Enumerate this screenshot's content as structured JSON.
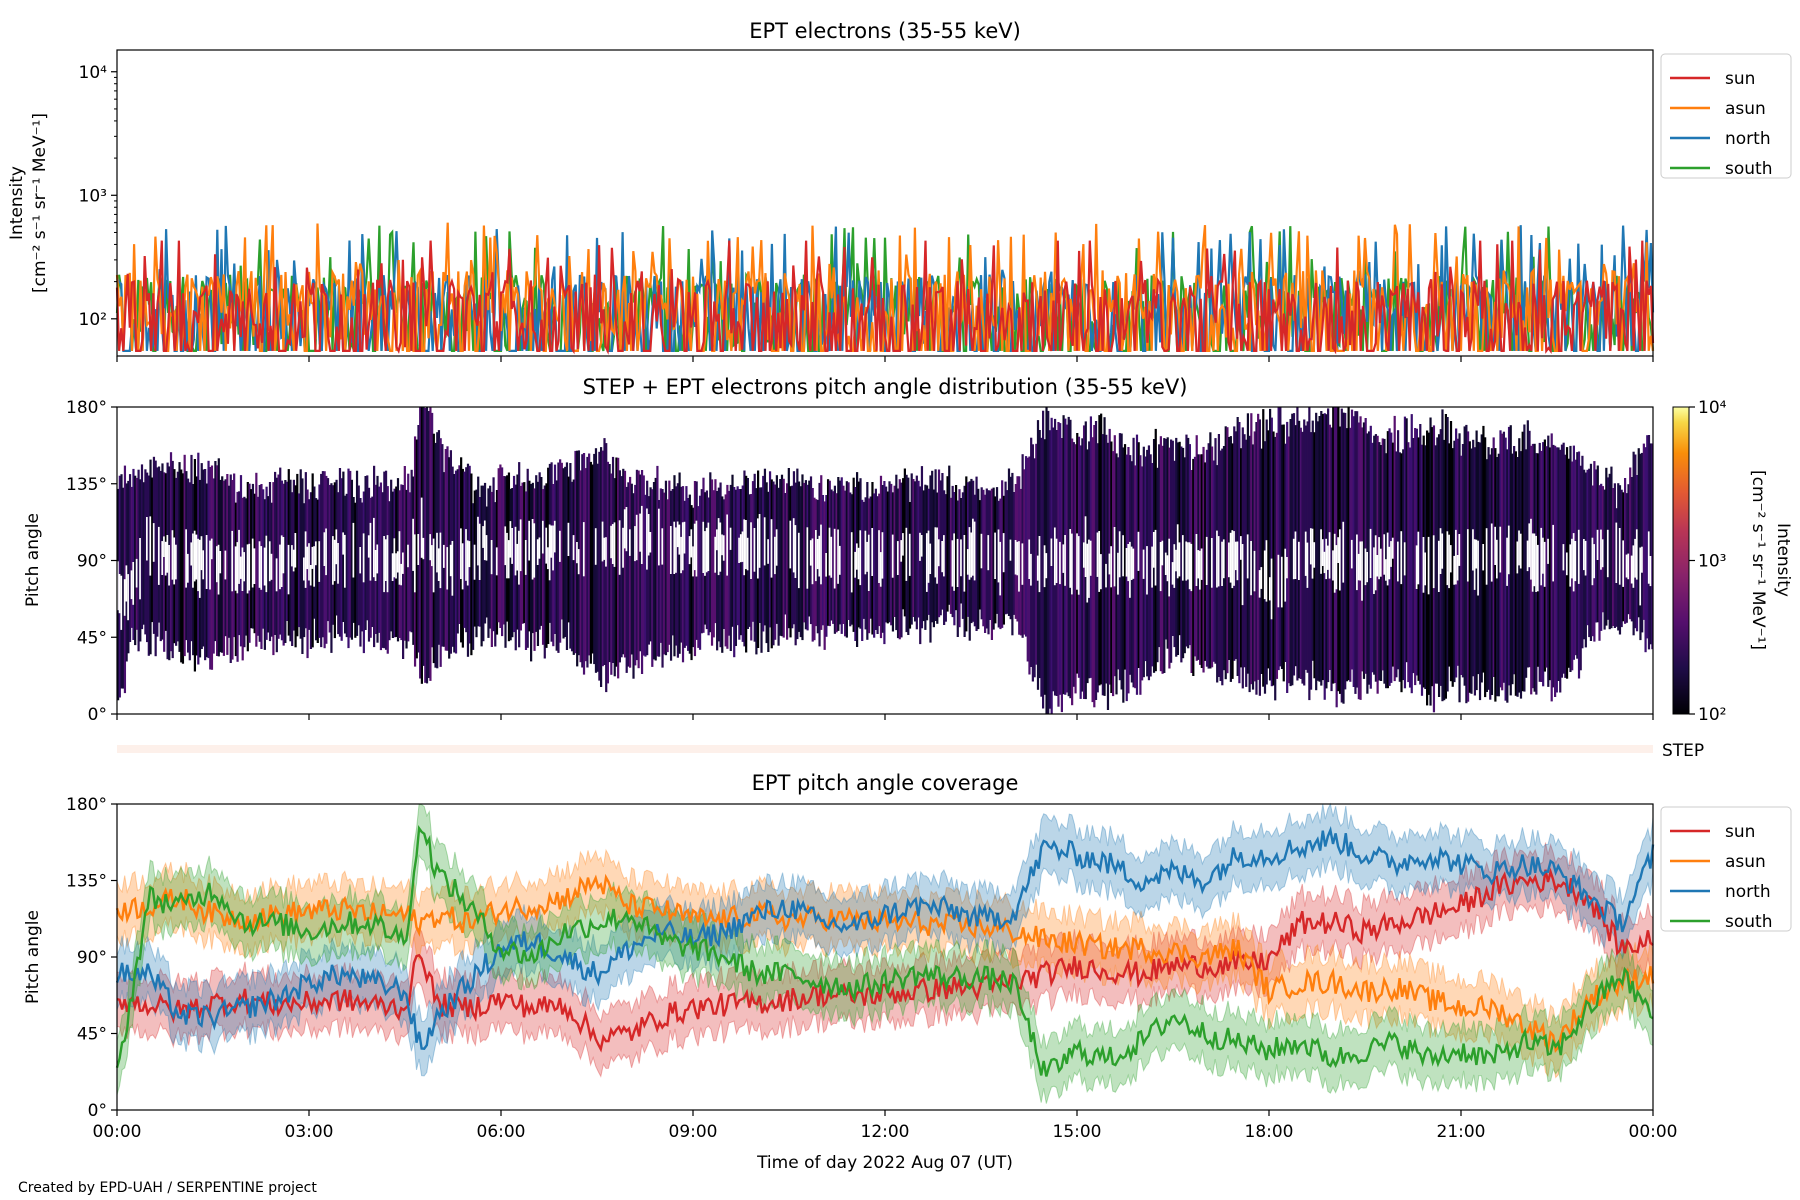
{
  "footer_credit": "Created by EPD-UAH / SERPENTINE project",
  "colors": {
    "sun": "#d62728",
    "asun": "#ff7f0e",
    "north": "#1f77b4",
    "south": "#2ca02c"
  },
  "chart_data": [
    {
      "type": "line",
      "title": "EPT electrons (35-55 keV)",
      "ylabel_line1": "Intensity",
      "ylabel_line2": "[cm⁻² s⁻¹ sr⁻¹ MeV⁻¹]",
      "yscale": "log",
      "ylim": [
        50,
        15000
      ],
      "yticks": [
        {
          "v": 100,
          "label": "10²"
        },
        {
          "v": 1000,
          "label": "10³"
        },
        {
          "v": 10000,
          "label": "10⁴"
        }
      ],
      "xlim_hours": [
        0,
        24
      ],
      "legend": "outside-right",
      "series": [
        {
          "name": "south",
          "color": "#2ca02c",
          "approx_median": 120,
          "approx_peak": 600
        },
        {
          "name": "north",
          "color": "#1f77b4",
          "approx_median": 120,
          "approx_peak": 580
        },
        {
          "name": "asun",
          "color": "#ff7f0e",
          "approx_median": 130,
          "approx_peak": 600
        },
        {
          "name": "sun",
          "color": "#d62728",
          "approx_median": 110,
          "approx_peak": 430
        }
      ]
    },
    {
      "type": "heatmap",
      "title": "STEP + EPT electrons pitch angle distribution (35-55 keV)",
      "ylabel": "Pitch angle",
      "ylim": [
        0,
        180
      ],
      "yticks": [
        "0°",
        "45°",
        "90°",
        "135°",
        "180°"
      ],
      "colorbar": {
        "label_line1": "Intensity",
        "label_line2": "[cm⁻² s⁻¹ sr⁻¹ MeV⁻¹]",
        "scale": "log",
        "range": [
          100,
          10000
        ],
        "ticks": [
          "10²",
          "10³",
          "10⁴"
        ],
        "colormap": "inferno"
      },
      "step_row_label": "STEP"
    },
    {
      "type": "line",
      "title": "EPT pitch angle coverage",
      "ylabel": "Pitch angle",
      "xlabel": "Time of day 2022 Aug 07 (UT)",
      "ylim": [
        0,
        180
      ],
      "yticks": [
        "0°",
        "45°",
        "90°",
        "135°",
        "180°"
      ],
      "xticks": [
        "00:00",
        "03:00",
        "06:00",
        "09:00",
        "12:00",
        "15:00",
        "18:00",
        "21:00",
        "00:00"
      ],
      "legend": "outside-right",
      "x_hours": [
        0,
        0.5,
        1,
        1.5,
        2,
        2.5,
        3,
        3.5,
        4,
        4.5,
        4.75,
        5,
        5.5,
        6,
        6.5,
        7,
        7.5,
        8,
        8.5,
        9,
        9.5,
        10,
        10.5,
        11,
        11.5,
        12,
        12.5,
        13,
        13.5,
        14,
        14.5,
        15,
        15.5,
        16,
        16.5,
        17,
        17.5,
        18,
        18.5,
        19,
        19.5,
        20,
        20.5,
        21,
        21.5,
        22,
        22.5,
        23,
        23.5,
        24
      ],
      "series": [
        {
          "name": "sun",
          "color": "#d62728",
          "values": [
            65,
            62,
            58,
            63,
            65,
            62,
            63,
            65,
            62,
            60,
            95,
            62,
            60,
            65,
            60,
            62,
            42,
            45,
            55,
            60,
            62,
            63,
            65,
            68,
            67,
            68,
            70,
            72,
            72,
            75,
            80,
            85,
            82,
            80,
            85,
            85,
            85,
            88,
            110,
            110,
            105,
            110,
            115,
            120,
            130,
            135,
            135,
            125,
            95,
            100
          ]
        },
        {
          "name": "asun",
          "color": "#ff7f0e",
          "values": [
            118,
            120,
            125,
            115,
            112,
            115,
            117,
            118,
            115,
            115,
            110,
            115,
            110,
            118,
            120,
            125,
            135,
            120,
            118,
            112,
            112,
            115,
            112,
            113,
            112,
            110,
            110,
            108,
            108,
            105,
            100,
            98,
            95,
            95,
            93,
            90,
            95,
            70,
            75,
            75,
            70,
            72,
            65,
            60,
            60,
            50,
            40,
            65,
            75,
            80
          ]
        },
        {
          "name": "north",
          "color": "#1f77b4",
          "values": [
            80,
            80,
            55,
            55,
            60,
            65,
            75,
            80,
            75,
            70,
            35,
            55,
            75,
            95,
            100,
            90,
            80,
            95,
            105,
            100,
            105,
            115,
            120,
            110,
            108,
            115,
            120,
            118,
            112,
            115,
            155,
            150,
            145,
            135,
            140,
            135,
            150,
            150,
            155,
            160,
            150,
            145,
            150,
            145,
            140,
            145,
            140,
            125,
            110,
            150
          ]
        },
        {
          "name": "south",
          "color": "#2ca02c",
          "values": [
            20,
            125,
            120,
            130,
            110,
            110,
            105,
            110,
            110,
            100,
            170,
            140,
            120,
            95,
            90,
            105,
            110,
            115,
            100,
            95,
            90,
            80,
            80,
            75,
            72,
            75,
            80,
            78,
            78,
            75,
            20,
            35,
            30,
            40,
            55,
            45,
            40,
            35,
            40,
            30,
            35,
            40,
            30,
            35,
            30,
            40,
            35,
            60,
            80,
            55
          ]
        }
      ]
    }
  ]
}
